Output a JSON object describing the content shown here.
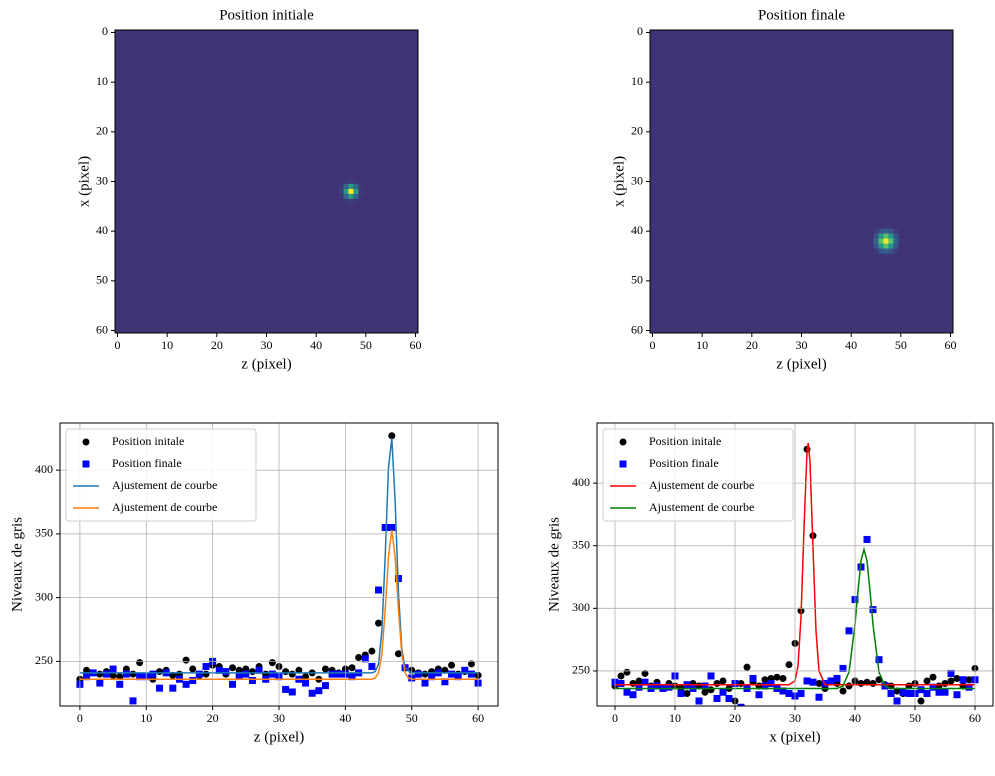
{
  "chart_data": [
    {
      "type": "heatmap",
      "title": "Position initiale",
      "xlabel": "z (pixel)",
      "ylabel": "x (pixel)",
      "xlim": [
        -0.5,
        60.5
      ],
      "ylim": [
        60.5,
        -0.5
      ],
      "xticks": [
        0,
        10,
        20,
        30,
        40,
        50,
        60
      ],
      "yticks": [
        0,
        10,
        20,
        30,
        40,
        50,
        60
      ],
      "colormap": "viridis",
      "background": 240,
      "peak": 427,
      "spot_z": 47,
      "spot_x": 32,
      "spot_sigma": 0.8
    },
    {
      "type": "heatmap",
      "title": "Position finale",
      "xlabel": "z (pixel)",
      "ylabel": "x (pixel)",
      "xlim": [
        -0.5,
        60.5
      ],
      "ylim": [
        60.5,
        -0.5
      ],
      "xticks": [
        0,
        10,
        20,
        30,
        40,
        50,
        60
      ],
      "yticks": [
        0,
        10,
        20,
        30,
        40,
        50,
        60
      ],
      "colormap": "viridis",
      "background": 240,
      "peak": 355,
      "spot_z": 47,
      "spot_x": 42,
      "spot_sigma": 1.1
    },
    {
      "type": "line",
      "xlabel": "z (pixel)",
      "ylabel": "Niveaux de gris",
      "xlim": [
        -3,
        63
      ],
      "ylim": [
        215,
        437
      ],
      "xticks": [
        0,
        10,
        20,
        30,
        40,
        50,
        60
      ],
      "yticks": [
        250,
        300,
        350,
        400
      ],
      "grid": true,
      "legend": "upper left",
      "x": [
        0,
        1,
        2,
        3,
        4,
        5,
        6,
        7,
        8,
        9,
        10,
        11,
        12,
        13,
        14,
        15,
        16,
        17,
        18,
        19,
        20,
        21,
        22,
        23,
        24,
        25,
        26,
        27,
        28,
        29,
        30,
        31,
        32,
        33,
        34,
        35,
        36,
        37,
        38,
        39,
        40,
        41,
        42,
        43,
        44,
        45,
        46,
        47,
        48,
        49,
        50,
        51,
        52,
        53,
        54,
        55,
        56,
        57,
        58,
        59,
        60
      ],
      "series": [
        {
          "name": "Position initale",
          "color": "#000000",
          "marker": "o",
          "values": [
            236,
            243,
            241,
            240,
            242,
            239,
            238,
            244,
            240,
            249,
            238,
            236,
            242,
            243,
            239,
            240,
            251,
            244,
            239,
            240,
            247,
            246,
            240,
            245,
            243,
            244,
            242,
            246,
            240,
            249,
            246,
            242,
            240,
            243,
            238,
            241,
            236,
            244,
            243,
            241,
            244,
            245,
            253,
            255,
            258,
            280,
            355,
            427,
            256,
            245,
            243,
            241,
            240,
            242,
            244,
            243,
            247,
            240,
            242,
            248,
            239
          ]
        },
        {
          "name": "Position finale",
          "color": "#0000ff",
          "marker": "s",
          "values": [
            232,
            238,
            241,
            233,
            240,
            244,
            232,
            240,
            219,
            238,
            238,
            240,
            229,
            241,
            229,
            236,
            232,
            235,
            240,
            246,
            250,
            243,
            242,
            232,
            239,
            240,
            235,
            243,
            236,
            240,
            238,
            228,
            226,
            236,
            233,
            225,
            227,
            231,
            240,
            240,
            240,
            238,
            241,
            252,
            246,
            306,
            355,
            355,
            315,
            245,
            237,
            240,
            233,
            238,
            241,
            234,
            240,
            238,
            243,
            240,
            233
          ]
        },
        {
          "name": "Ajustement de courbe",
          "color": "#1f77b4",
          "x": [
            0,
            44,
            44.5,
            45,
            45.5,
            46,
            46.5,
            47,
            47.5,
            48,
            48.5,
            49,
            50,
            60
          ],
          "values": [
            241,
            241,
            242,
            248,
            274,
            332,
            402,
            425,
            376,
            304,
            260,
            245,
            241,
            241
          ]
        },
        {
          "name": "Ajustement de courbe",
          "color": "#ff7f0e",
          "x": [
            0,
            44,
            44.5,
            45,
            45.5,
            46,
            46.5,
            47,
            47.5,
            48,
            48.5,
            49,
            49.5,
            50,
            60
          ],
          "values": [
            236,
            236,
            237,
            241,
            256,
            290,
            332,
            353,
            332,
            290,
            256,
            241,
            237,
            236,
            236
          ]
        }
      ]
    },
    {
      "type": "line",
      "xlabel": "x (pixel)",
      "ylabel": "Niveaux de gris",
      "xlim": [
        -3,
        63
      ],
      "ylim": [
        222,
        448
      ],
      "xticks": [
        0,
        10,
        20,
        30,
        40,
        50,
        60
      ],
      "yticks": [
        250,
        300,
        350,
        400
      ],
      "grid": true,
      "legend": "upper left",
      "x": [
        0,
        1,
        2,
        3,
        4,
        5,
        6,
        7,
        8,
        9,
        10,
        11,
        12,
        13,
        14,
        15,
        16,
        17,
        18,
        19,
        20,
        21,
        22,
        23,
        24,
        25,
        26,
        27,
        28,
        29,
        30,
        31,
        32,
        33,
        34,
        35,
        36,
        37,
        38,
        39,
        40,
        41,
        42,
        43,
        44,
        45,
        46,
        47,
        48,
        49,
        50,
        51,
        52,
        53,
        54,
        55,
        56,
        57,
        58,
        59,
        60
      ],
      "series": [
        {
          "name": "Position initale",
          "color": "#000000",
          "marker": "o",
          "values": [
            238,
            246,
            249,
            240,
            242,
            248,
            238,
            241,
            236,
            240,
            238,
            236,
            232,
            240,
            238,
            233,
            235,
            240,
            242,
            236,
            226,
            240,
            253,
            241,
            238,
            243,
            244,
            245,
            244,
            255,
            272,
            298,
            427,
            358,
            240,
            236,
            241,
            240,
            234,
            238,
            242,
            240,
            241,
            240,
            243,
            239,
            238,
            234,
            232,
            238,
            240,
            226,
            242,
            245,
            238,
            240,
            242,
            244,
            238,
            243,
            252
          ]
        },
        {
          "name": "Position finale",
          "color": "#0000ff",
          "marker": "s",
          "values": [
            241,
            240,
            233,
            231,
            237,
            241,
            236,
            238,
            236,
            237,
            246,
            232,
            239,
            236,
            226,
            238,
            246,
            228,
            233,
            228,
            240,
            221,
            236,
            244,
            231,
            238,
            240,
            236,
            234,
            232,
            230,
            232,
            242,
            241,
            229,
            240,
            242,
            244,
            252,
            282,
            307,
            333,
            355,
            299,
            259,
            238,
            232,
            226,
            233,
            232,
            232,
            235,
            232,
            237,
            233,
            233,
            248,
            231,
            243,
            237,
            243
          ]
        },
        {
          "name": "Ajustement de courbe",
          "color": "#ff0000",
          "x": [
            0,
            29,
            30,
            30.5,
            31,
            31.5,
            32,
            32.2,
            32.5,
            33,
            33.5,
            34,
            35,
            60
          ],
          "values": [
            239,
            239,
            242,
            254,
            293,
            364,
            425,
            432,
            417,
            348,
            282,
            250,
            239,
            239
          ]
        },
        {
          "name": "Ajustement de courbe",
          "color": "#008000",
          "x": [
            0,
            37,
            38,
            39,
            40,
            40.5,
            41,
            41.5,
            42,
            42.5,
            43,
            44,
            45,
            46,
            60
          ],
          "values": [
            236,
            236,
            238,
            249,
            287,
            314,
            338,
            347,
            338,
            314,
            287,
            249,
            238,
            236,
            236
          ]
        }
      ]
    }
  ]
}
